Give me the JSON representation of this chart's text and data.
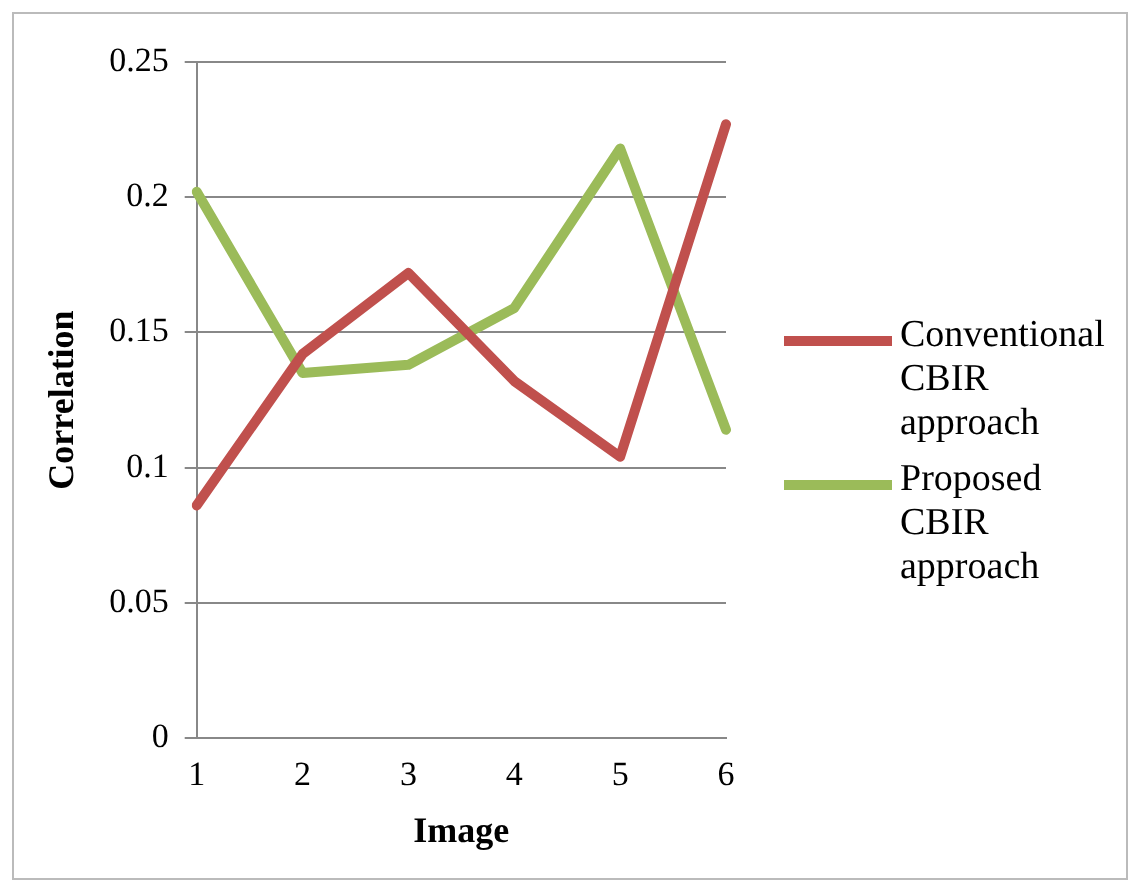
{
  "chart_data": {
    "type": "line",
    "xlabel": "Image",
    "ylabel": "Correlation",
    "categories": [
      "1",
      "2",
      "3",
      "4",
      "5",
      "6"
    ],
    "series": [
      {
        "name": "Conventional CBIR approach",
        "color": "#c0504d",
        "values": [
          0.086,
          0.142,
          0.172,
          0.132,
          0.104,
          0.227
        ]
      },
      {
        "name": "Proposed CBIR approach",
        "color": "#9bbb59",
        "values": [
          0.202,
          0.135,
          0.138,
          0.159,
          0.218,
          0.114
        ]
      }
    ],
    "ylim": [
      0,
      0.25
    ],
    "yticks": [
      0,
      0.05,
      0.1,
      0.15,
      0.2,
      0.25
    ],
    "grid": "y",
    "legend": "right",
    "marker": "none",
    "line_style": "solid"
  }
}
